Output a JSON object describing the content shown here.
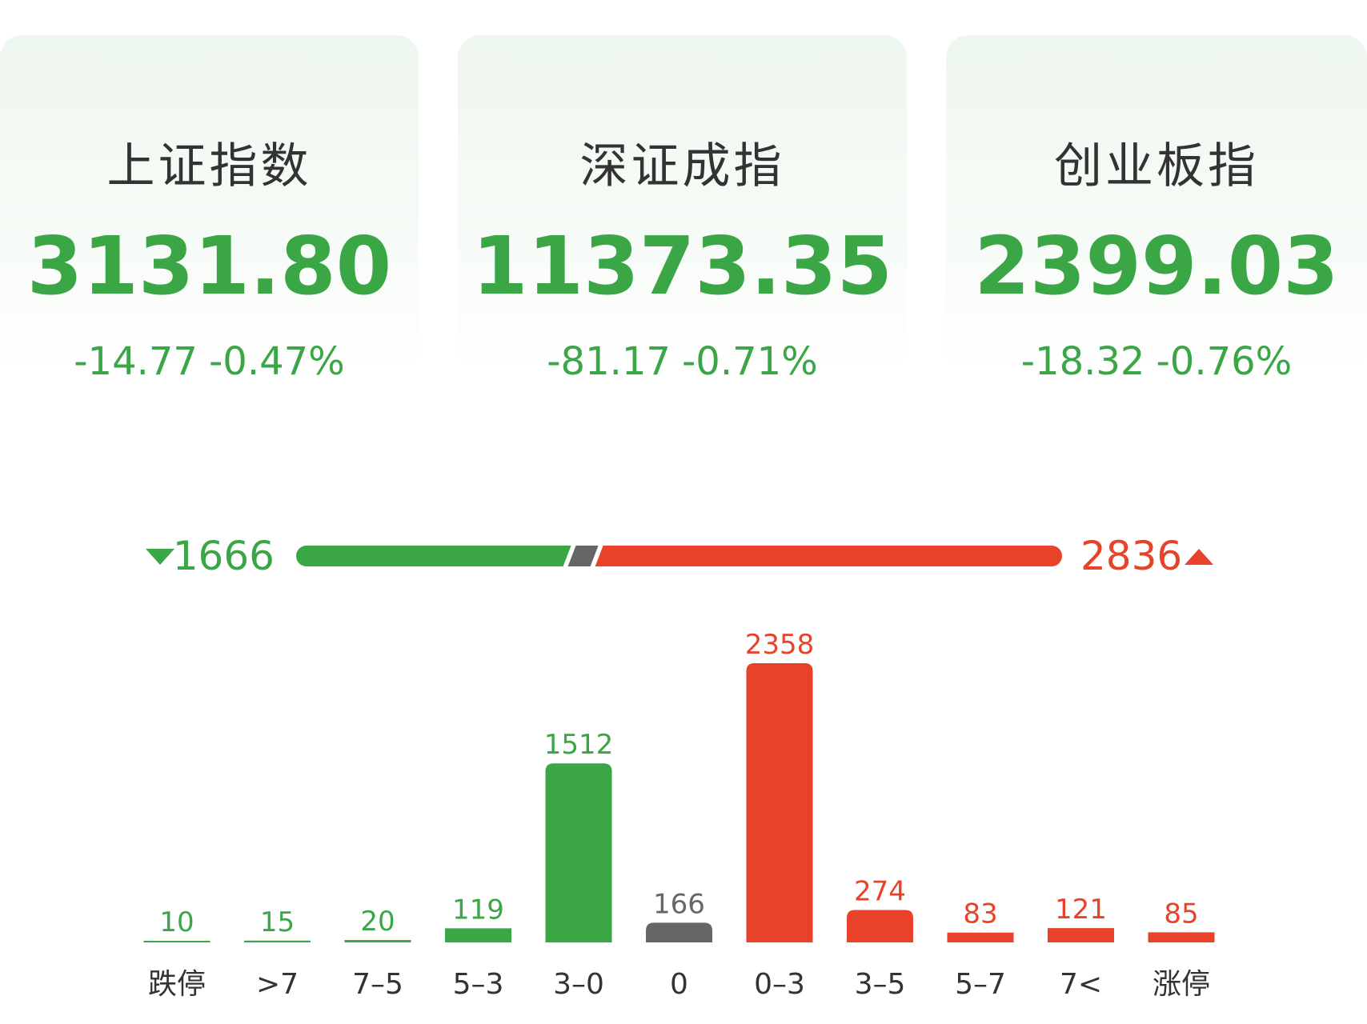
{
  "indices": [
    {
      "name": "上证指数",
      "value": "3131.80",
      "change": "-14.77",
      "pct": "-0.47%"
    },
    {
      "name": "深证成指",
      "value": "11373.35",
      "change": "-81.17",
      "pct": "-0.71%"
    },
    {
      "name": "创业板指",
      "value": "2399.03",
      "change": "-18.32",
      "pct": "-0.76%"
    }
  ],
  "breadth": {
    "down": 1666,
    "up": 2836
  },
  "chart_data": {
    "type": "bar",
    "categories": [
      "跌停",
      ">7",
      "7–5",
      "5–3",
      "3–0",
      "0",
      "0–3",
      "3–5",
      "5–7",
      "7<",
      "涨停"
    ],
    "values": [
      10,
      15,
      20,
      119,
      1512,
      166,
      2358,
      274,
      83,
      121,
      85
    ],
    "colors": [
      "#3aa646",
      "#3aa646",
      "#3aa646",
      "#3aa646",
      "#3aa646",
      "#666666",
      "#e8432a",
      "#e8432a",
      "#e8432a",
      "#e8432a",
      "#e8432a"
    ]
  }
}
